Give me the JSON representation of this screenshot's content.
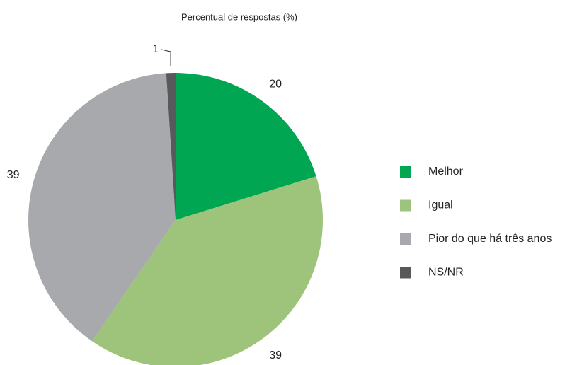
{
  "chart_data": {
    "type": "pie",
    "title": "Percentual de respostas (%)",
    "categories": [
      "Melhor",
      "Igual",
      "Pior do que há três anos",
      "NS/NR"
    ],
    "values": [
      20,
      39,
      39,
      1
    ],
    "colors": [
      "#00a651",
      "#9dc47a",
      "#a7a9ac",
      "#58595b"
    ],
    "legend": "right"
  }
}
